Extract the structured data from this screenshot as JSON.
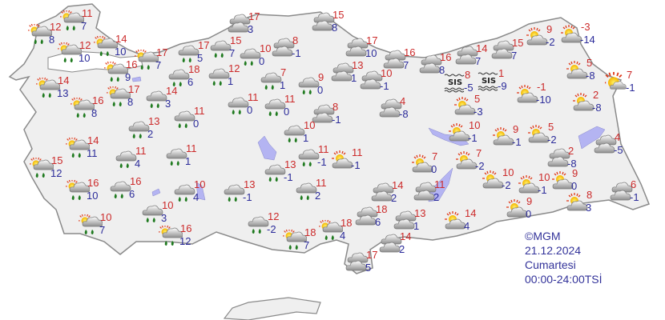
{
  "colors": {
    "land": "#efefef",
    "border": "#8a8a8a",
    "water": "#b4b4f2",
    "max_temp": "#cc2a2a",
    "min_temp": "#2b2b9a",
    "rain_drop": "#1f7a1f",
    "footer": "#33339a"
  },
  "fog_label": "SIS",
  "stations": [
    {
      "icon": "partly-rain",
      "max": "11",
      "min": "7"
    },
    {
      "icon": "partly-rain",
      "max": "12",
      "min": "8"
    },
    {
      "icon": "partly-rain",
      "max": "12",
      "min": "10"
    },
    {
      "icon": "partly-rain",
      "max": "14",
      "min": "10"
    },
    {
      "icon": "partly-rain",
      "max": "17",
      "min": "7"
    },
    {
      "icon": "partly-rain",
      "max": "16",
      "min": "9"
    },
    {
      "icon": "partly-rain",
      "max": "14",
      "min": "13"
    },
    {
      "icon": "partly-rain",
      "max": "17",
      "min": "8"
    },
    {
      "icon": "partly-rain",
      "max": "16",
      "min": "8"
    },
    {
      "icon": "rain",
      "max": "14",
      "min": "3"
    },
    {
      "icon": "rain",
      "max": "17",
      "min": "5"
    },
    {
      "icon": "rain",
      "max": "15",
      "min": "7"
    },
    {
      "icon": "cloudy",
      "max": "17",
      "min": "3"
    },
    {
      "icon": "rain",
      "max": "10",
      "min": "0"
    },
    {
      "icon": "cloudy",
      "max": "8",
      "min": "-1"
    },
    {
      "icon": "rain",
      "max": "18",
      "min": "6"
    },
    {
      "icon": "rain",
      "max": "12",
      "min": "1"
    },
    {
      "icon": "rain",
      "max": "7",
      "min": "1"
    },
    {
      "icon": "rain",
      "max": "9",
      "min": "0"
    },
    {
      "icon": "rain",
      "max": "11",
      "min": "0"
    },
    {
      "icon": "rain",
      "max": "11",
      "min": "0"
    },
    {
      "icon": "cloudy",
      "max": "8",
      "min": "-1"
    },
    {
      "icon": "rain",
      "max": "11",
      "min": "0"
    },
    {
      "icon": "rain",
      "max": "13",
      "min": "2"
    },
    {
      "icon": "rain",
      "max": "10",
      "min": "1"
    },
    {
      "icon": "cloudy",
      "max": "15",
      "min": "8"
    },
    {
      "icon": "cloudy",
      "max": "17",
      "min": "10"
    },
    {
      "icon": "cloudy",
      "max": "16",
      "min": "7"
    },
    {
      "icon": "cloudy",
      "max": "16",
      "min": "8"
    },
    {
      "icon": "cloudy",
      "max": "14",
      "min": "7"
    },
    {
      "icon": "cloudy",
      "max": "15",
      "min": "7"
    },
    {
      "icon": "partly-sunny",
      "max": "9",
      "min": "-2"
    },
    {
      "icon": "partly-sunny",
      "max": "-3",
      "min": "-14"
    },
    {
      "icon": "cloudy",
      "max": "13",
      "min": "1"
    },
    {
      "icon": "cloudy",
      "max": "10",
      "min": "-1"
    },
    {
      "icon": "fog",
      "max": "8",
      "min": "-5"
    },
    {
      "icon": "fog",
      "max": "1",
      "min": "-9"
    },
    {
      "icon": "partly-sunny",
      "max": "-1",
      "min": "-10"
    },
    {
      "icon": "partly-sunny",
      "max": "5",
      "min": "-8"
    },
    {
      "icon": "sunny",
      "max": "7",
      "min": "-1"
    },
    {
      "icon": "partly-sunny",
      "max": "2",
      "min": "-8"
    },
    {
      "icon": "partly-sunny",
      "max": "5",
      "min": "-3"
    },
    {
      "icon": "cloudy",
      "max": "4",
      "min": "-8"
    },
    {
      "icon": "partly-sunny",
      "max": "10",
      "min": "-1"
    },
    {
      "icon": "partly-sunny",
      "max": "9",
      "min": "-1"
    },
    {
      "icon": "partly-sunny",
      "max": "5",
      "min": "-2"
    },
    {
      "icon": "cloudy",
      "max": "4",
      "min": "-5"
    },
    {
      "icon": "cloudy",
      "max": "2",
      "min": "-8"
    },
    {
      "icon": "partly-rain",
      "max": "14",
      "min": "11"
    },
    {
      "icon": "rain",
      "max": "11",
      "min": "4"
    },
    {
      "icon": "rain",
      "max": "11",
      "min": "1"
    },
    {
      "icon": "partly-rain",
      "max": "15",
      "min": "12"
    },
    {
      "icon": "partly-rain",
      "max": "16",
      "min": "10"
    },
    {
      "icon": "rain",
      "max": "16",
      "min": "6"
    },
    {
      "icon": "rain",
      "max": "10",
      "min": "4"
    },
    {
      "icon": "rain",
      "max": "13",
      "min": "-1"
    },
    {
      "icon": "rain",
      "max": "10",
      "min": "3"
    },
    {
      "icon": "partly-rain",
      "max": "10",
      "min": "7"
    },
    {
      "icon": "partly-rain",
      "max": "16",
      "min": "12"
    },
    {
      "icon": "rain",
      "max": "12",
      "min": "-2"
    },
    {
      "icon": "partly-rain",
      "max": "18",
      "min": "7"
    },
    {
      "icon": "rain",
      "max": "13",
      "min": "-1"
    },
    {
      "icon": "rain",
      "max": "11",
      "min": "-1"
    },
    {
      "icon": "rain",
      "max": "11",
      "min": "2"
    },
    {
      "icon": "partly-sunny",
      "max": "11",
      "min": "-1"
    },
    {
      "icon": "partly-sunny",
      "max": "7",
      "min": "0"
    },
    {
      "icon": "partly-sunny",
      "max": "7",
      "min": "-2"
    },
    {
      "icon": "partly-sunny",
      "max": "10",
      "min": "-2"
    },
    {
      "icon": "partly-sunny",
      "max": "10",
      "min": "-1"
    },
    {
      "icon": "partly-sunny",
      "max": "9",
      "min": "0"
    },
    {
      "icon": "cloudy",
      "max": "14",
      "min": "2"
    },
    {
      "icon": "cloudy",
      "max": "11",
      "min": "2"
    },
    {
      "icon": "cloudy",
      "max": "18",
      "min": "6"
    },
    {
      "icon": "cloudy",
      "max": "13",
      "min": "1"
    },
    {
      "icon": "partly-sunny",
      "max": "14",
      "min": "4"
    },
    {
      "icon": "partly-sunny",
      "max": "9",
      "min": "0"
    },
    {
      "icon": "partly-sunny",
      "max": "8",
      "min": "3"
    },
    {
      "icon": "cloudy",
      "max": "6",
      "min": "-1"
    },
    {
      "icon": "cloudy",
      "max": "14",
      "min": "2"
    },
    {
      "icon": "cloudy",
      "max": "17",
      "min": "5"
    },
    {
      "icon": "partly-rain",
      "max": "18",
      "min": "4"
    }
  ],
  "footer": {
    "copyright": "©MGM",
    "date": "21.12.2024",
    "day": "Cumartesi",
    "period": "00:00-24:00TSİ"
  }
}
